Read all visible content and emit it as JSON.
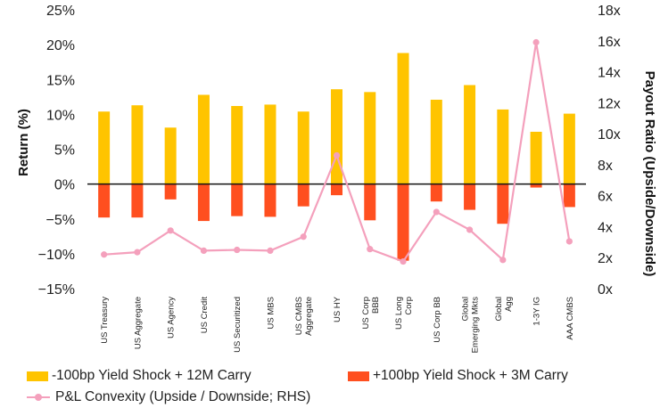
{
  "chart_data": {
    "type": "bar",
    "categories": [
      [
        "US Treasury"
      ],
      [
        "US Aggregate"
      ],
      [
        "US Agency"
      ],
      [
        "US Credit"
      ],
      [
        "US Securitized"
      ],
      [
        "US MBS"
      ],
      [
        "US CMBS",
        "Aggregate"
      ],
      [
        "US HY"
      ],
      [
        "US Corp",
        "BBB"
      ],
      [
        "US Long",
        "Corp"
      ],
      [
        "US Corp BB"
      ],
      [
        "Global",
        "Emerging Mkts"
      ],
      [
        "Global",
        "Agg"
      ],
      [
        "1-3Y IG"
      ],
      [
        "AAA CMBS"
      ]
    ],
    "series": [
      {
        "name": "-100bp Yield Shock + 12M Carry",
        "color": "#FFC400",
        "axis": "left",
        "values": [
          10.4,
          11.3,
          8.1,
          12.8,
          11.2,
          11.4,
          10.4,
          13.6,
          13.2,
          18.8,
          12.1,
          14.2,
          10.7,
          7.5,
          10.1
        ]
      },
      {
        "name": "+100bp Yield Shock + 3M Carry",
        "color": "#FF4F1F",
        "axis": "left",
        "values": [
          -4.8,
          -4.8,
          -2.2,
          -5.3,
          -4.6,
          -4.7,
          -3.2,
          -1.6,
          -5.2,
          -11.0,
          -2.5,
          -3.7,
          -5.7,
          -0.5,
          -3.3
        ]
      },
      {
        "name": "P&L Convexity (Upside / Downside; RHS)",
        "color": "#F4A0BC",
        "axis": "right",
        "type": "line",
        "values": [
          2.2,
          2.35,
          3.75,
          2.45,
          2.5,
          2.45,
          3.35,
          8.6,
          2.55,
          1.75,
          4.95,
          3.8,
          1.85,
          15.9,
          3.05
        ]
      }
    ],
    "y_left": {
      "label": "Return (%)",
      "ylim": [
        -15,
        25
      ],
      "ticks": [
        -15,
        -10,
        -5,
        0,
        5,
        10,
        15,
        20,
        25
      ],
      "tick_labels": [
        "−15%",
        "−10%",
        "−5%",
        "0%",
        "5%",
        "10%",
        "15%",
        "20%",
        "25%"
      ]
    },
    "y_right": {
      "label": "Payout Ratio (Upside/Downside)",
      "ylim": [
        0,
        18
      ],
      "ticks": [
        0,
        2,
        4,
        6,
        8,
        10,
        12,
        14,
        16,
        18
      ],
      "tick_labels": [
        "0x",
        "2x",
        "4x",
        "6x",
        "8x",
        "10x",
        "12x",
        "14x",
        "16x",
        "18x"
      ]
    },
    "grid": false,
    "legend_position": "bottom"
  }
}
